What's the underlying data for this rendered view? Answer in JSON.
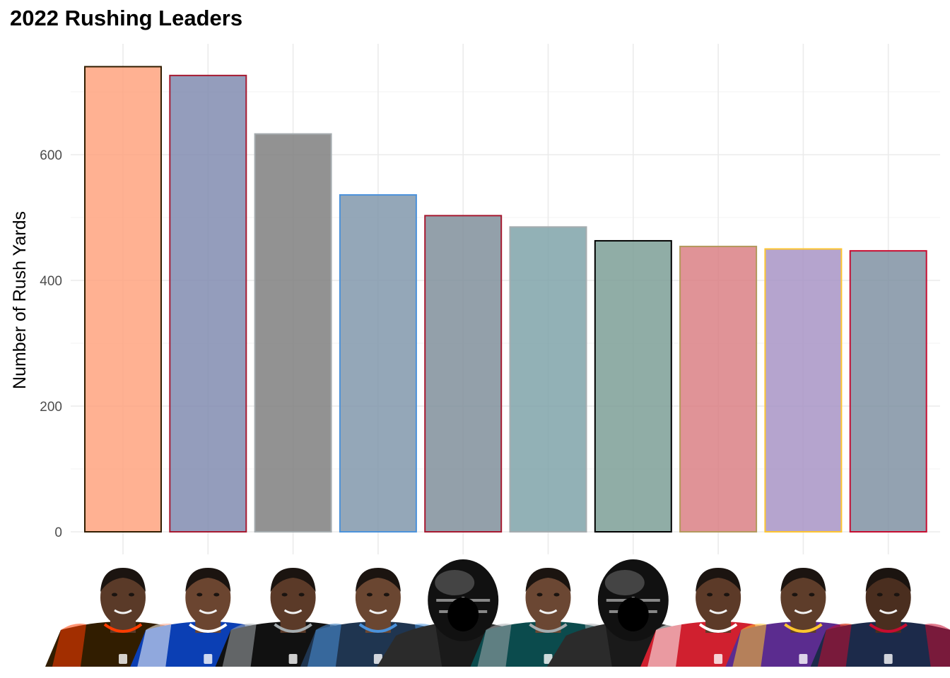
{
  "chart_data": {
    "type": "bar",
    "title": "2022 Rushing Leaders",
    "xlabel": "",
    "ylabel": "Number of Rush Yards",
    "ylim": [
      0,
      760
    ],
    "yticks": [
      0,
      200,
      400,
      600
    ],
    "grid": true,
    "categories": [
      "",
      "",
      "",
      "",
      "",
      "",
      "",
      "",
      "",
      ""
    ],
    "values": [
      740,
      726,
      633,
      536,
      503,
      485,
      463,
      454,
      450,
      447
    ],
    "fill_colors": [
      "#ffa07a",
      "#7c88ad",
      "#7a7a7a",
      "#7d94a8",
      "#7b8b97",
      "#7aa0a6",
      "#789b92",
      "#d97b80",
      "#a590c3",
      "#7b8da0"
    ],
    "outline_colors": [
      "#311d00",
      "#a71930",
      "#a5acaf",
      "#4b92db",
      "#a71930",
      "#a5acaf",
      "#000000",
      "#b3995d",
      "#ffc62f",
      "#c60c30"
    ],
    "player_images": [
      "player-headshot",
      "player-headshot",
      "player-headshot",
      "player-headshot",
      "helmet-placeholder",
      "player-headshot",
      "helmet-placeholder",
      "player-headshot",
      "player-headshot",
      "player-headshot"
    ],
    "jersey_colors": [
      "#311d00",
      "#0b3fb4",
      "#111111",
      "#1f3550",
      "#2a2a2a",
      "#0b4b4d",
      "#2a2a2a",
      "#d0202f",
      "#5b2c8f",
      "#1c2a4a"
    ],
    "jersey_trim": [
      "#ff3c00",
      "#ffffff",
      "#a5acaf",
      "#4b92db",
      "#555555",
      "#a5acaf",
      "#555555",
      "#ffffff",
      "#ffc62f",
      "#c60c30"
    ],
    "skin_colors": [
      "#5a3a28",
      "#6b4530",
      "#5b3a28",
      "#6a4631",
      "#000000",
      "#6b4733",
      "#000000",
      "#5c3a28",
      "#5e3d2a",
      "#4a2e1f"
    ]
  }
}
